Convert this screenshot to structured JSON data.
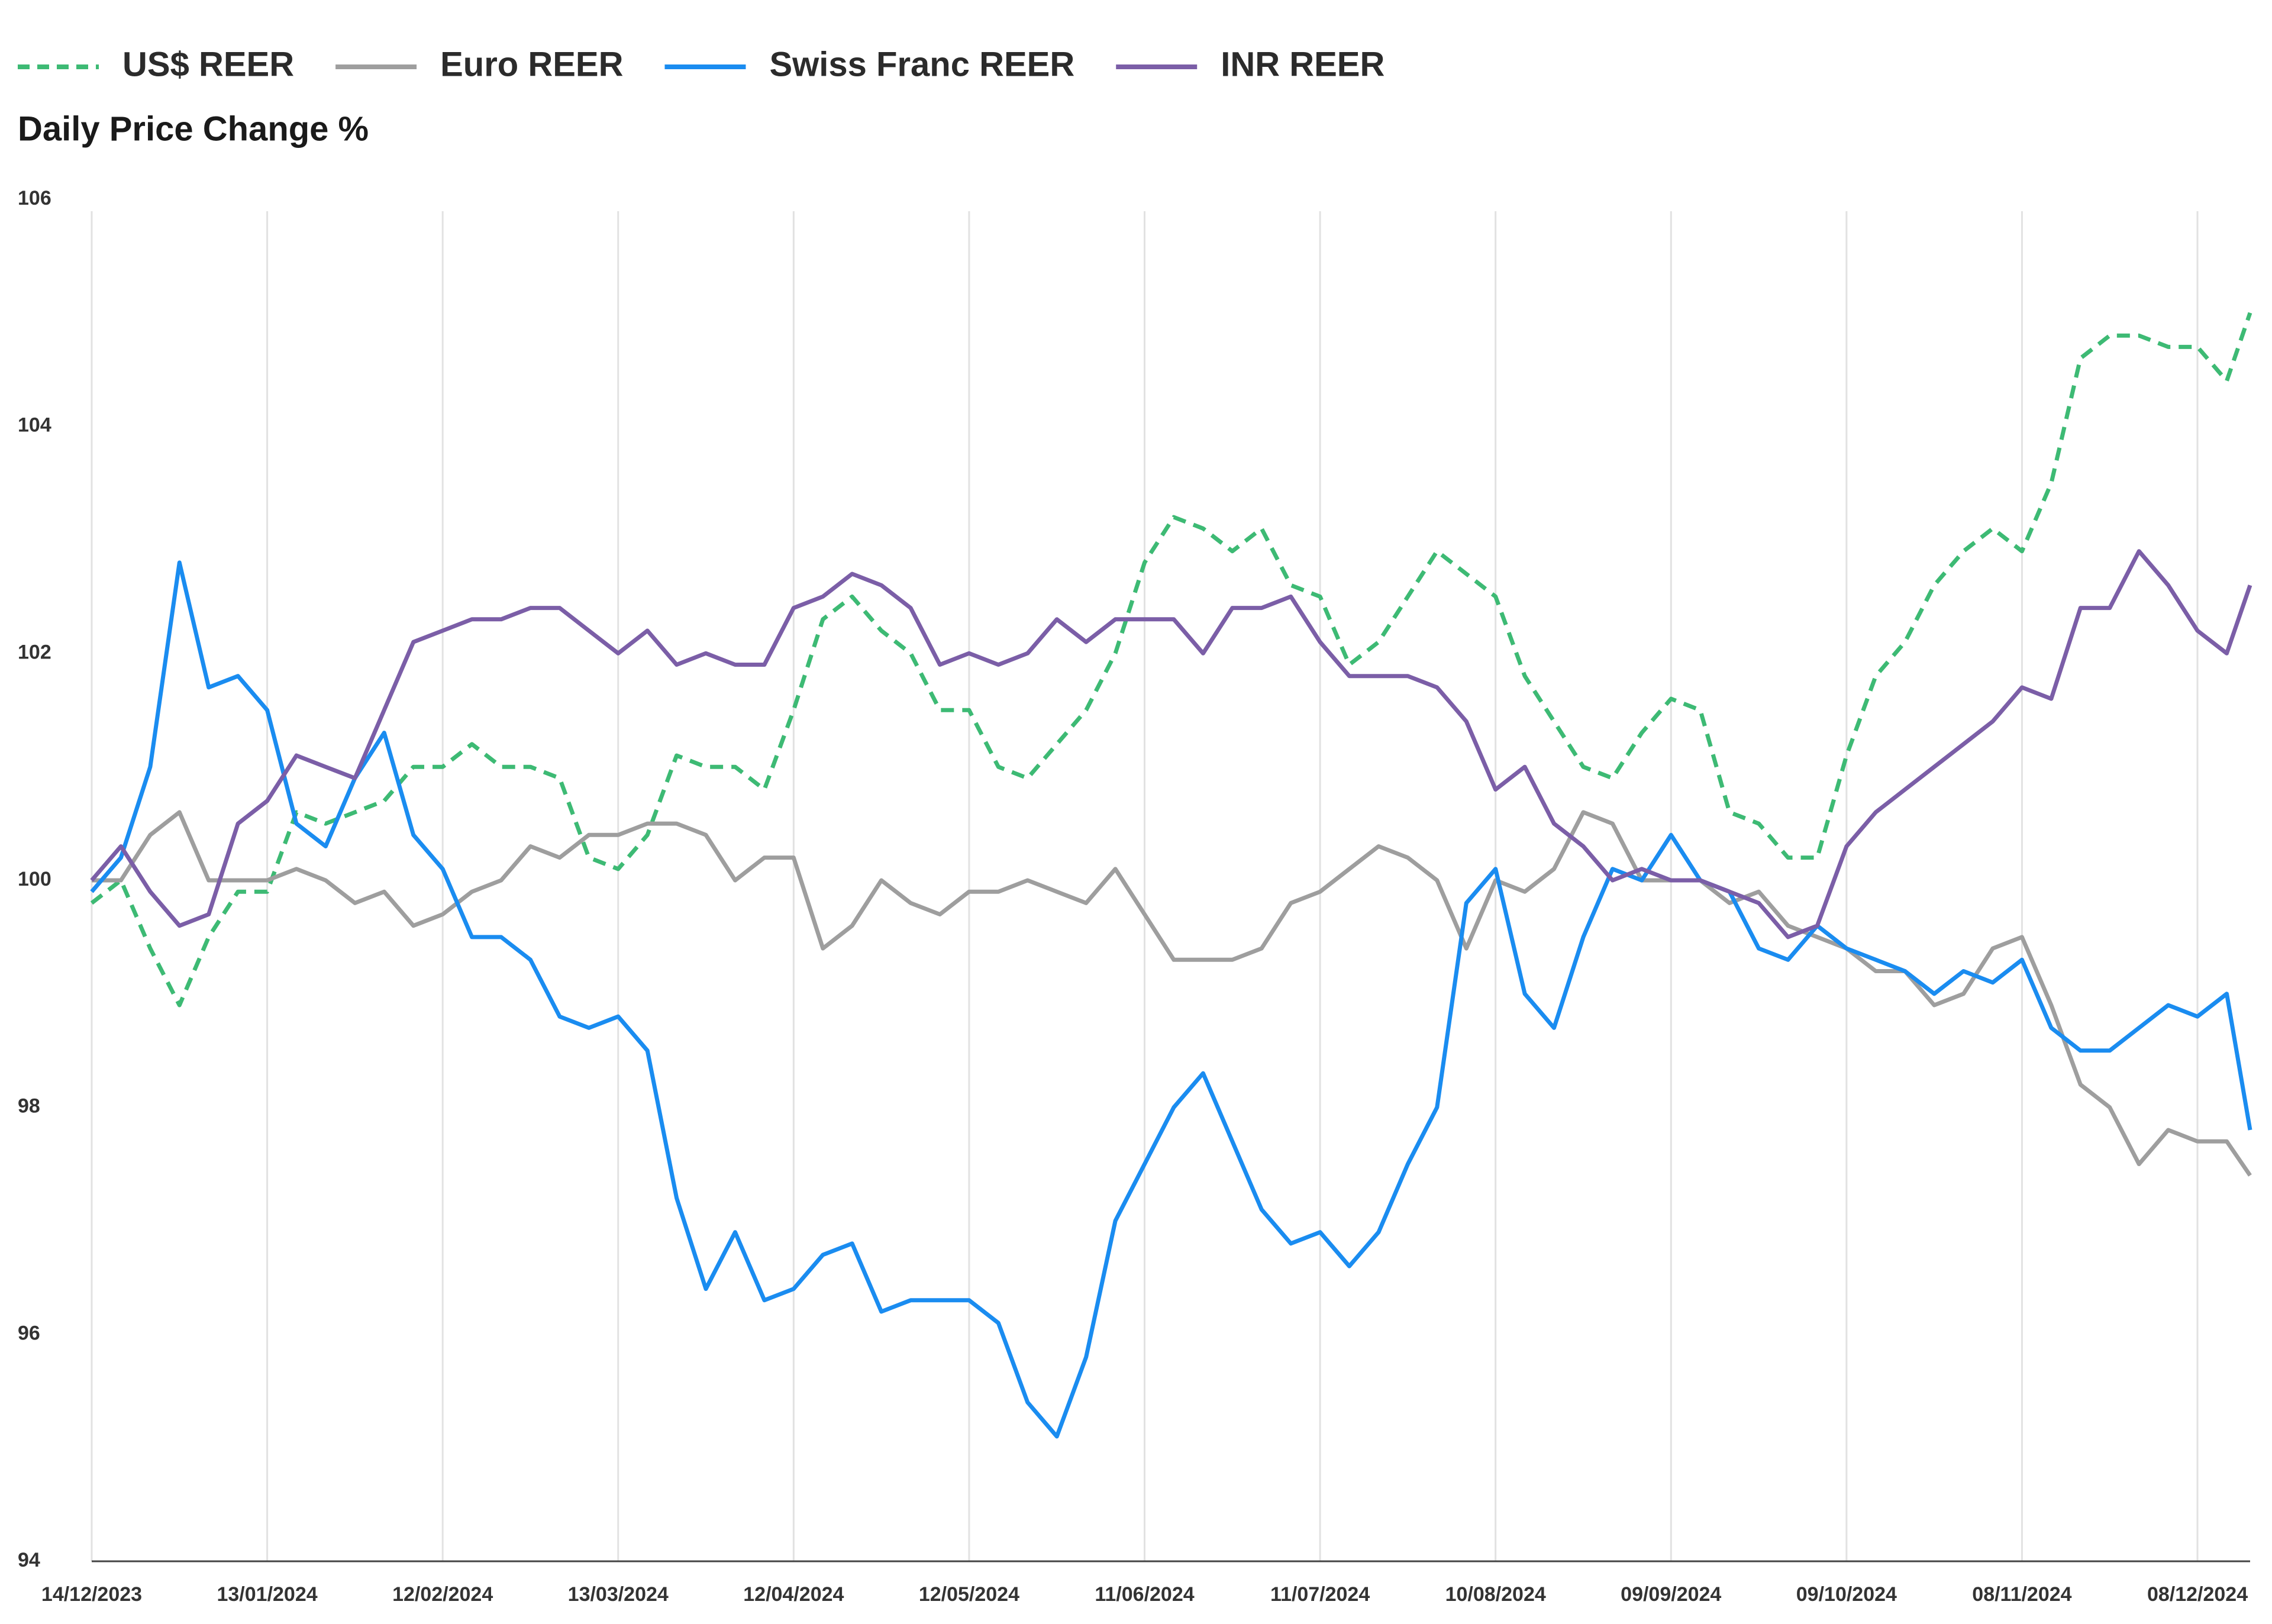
{
  "chart_data": {
    "type": "line",
    "title": "Daily Price Change %",
    "x": [
      "14/12/2023",
      "19/12/2023",
      "24/12/2023",
      "29/12/2023",
      "03/01/2024",
      "08/01/2024",
      "13/01/2024",
      "18/01/2024",
      "23/01/2024",
      "28/01/2024",
      "02/02/2024",
      "07/02/2024",
      "12/02/2024",
      "17/02/2024",
      "22/02/2024",
      "27/02/2024",
      "03/03/2024",
      "08/03/2024",
      "13/03/2024",
      "18/03/2024",
      "23/03/2024",
      "28/03/2024",
      "02/04/2024",
      "07/04/2024",
      "12/04/2024",
      "17/04/2024",
      "22/04/2024",
      "27/04/2024",
      "02/05/2024",
      "07/05/2024",
      "12/05/2024",
      "17/05/2024",
      "22/05/2024",
      "27/05/2024",
      "01/06/2024",
      "06/06/2024",
      "11/06/2024",
      "16/06/2024",
      "21/06/2024",
      "26/06/2024",
      "01/07/2024",
      "06/07/2024",
      "11/07/2024",
      "16/07/2024",
      "21/07/2024",
      "26/07/2024",
      "31/07/2024",
      "05/08/2024",
      "10/08/2024",
      "15/08/2024",
      "20/08/2024",
      "25/08/2024",
      "30/08/2024",
      "04/09/2024",
      "09/09/2024",
      "14/09/2024",
      "19/09/2024",
      "24/09/2024",
      "29/09/2024",
      "04/10/2024",
      "09/10/2024",
      "14/10/2024",
      "19/10/2024",
      "24/10/2024",
      "29/10/2024",
      "03/11/2024",
      "08/11/2024",
      "13/11/2024",
      "18/11/2024",
      "23/11/2024",
      "28/11/2024",
      "03/12/2024",
      "08/12/2024",
      "13/12/2024",
      "17/12/2024"
    ],
    "series": [
      {
        "name": "US$ REER",
        "color": "#3dba74",
        "style": "dashed",
        "values": [
          99.8,
          100.0,
          99.4,
          98.9,
          99.5,
          99.9,
          99.9,
          100.6,
          100.5,
          100.6,
          100.7,
          101.0,
          101.0,
          101.2,
          101.0,
          101.0,
          100.9,
          100.2,
          100.1,
          100.4,
          101.1,
          101.0,
          101.0,
          100.8,
          101.5,
          102.3,
          102.5,
          102.2,
          102.0,
          101.5,
          101.5,
          101.0,
          100.9,
          101.2,
          101.5,
          102.0,
          102.8,
          103.2,
          103.1,
          102.9,
          103.1,
          102.6,
          102.5,
          101.9,
          102.1,
          102.5,
          102.9,
          102.7,
          102.5,
          101.8,
          101.4,
          101.0,
          100.9,
          101.3,
          101.6,
          101.5,
          100.6,
          100.5,
          100.2,
          100.2,
          101.1,
          101.8,
          102.1,
          102.6,
          102.9,
          103.1,
          102.9,
          103.5,
          104.6,
          104.8,
          104.8,
          104.7,
          104.7,
          104.4,
          105.0
        ]
      },
      {
        "name": "Euro REER",
        "color": "#9e9e9e",
        "style": "solid",
        "values": [
          100.0,
          100.0,
          100.4,
          100.6,
          100.0,
          100.0,
          100.0,
          100.1,
          100.0,
          99.8,
          99.9,
          99.6,
          99.7,
          99.9,
          100.0,
          100.3,
          100.2,
          100.4,
          100.4,
          100.5,
          100.5,
          100.4,
          100.0,
          100.2,
          100.2,
          99.4,
          99.6,
          100.0,
          99.8,
          99.7,
          99.9,
          99.9,
          100.0,
          99.9,
          99.8,
          100.1,
          99.7,
          99.3,
          99.3,
          99.3,
          99.4,
          99.8,
          99.9,
          100.1,
          100.3,
          100.2,
          100.0,
          99.4,
          100.0,
          99.9,
          100.1,
          100.6,
          100.5,
          100.0,
          100.0,
          100.0,
          99.8,
          99.9,
          99.6,
          99.5,
          99.4,
          99.2,
          99.2,
          98.9,
          99.0,
          99.4,
          99.5,
          98.9,
          98.2,
          98.0,
          97.5,
          97.8,
          97.7,
          97.7,
          97.4
        ]
      },
      {
        "name": "Swiss Franc REER",
        "color": "#1a8cf0",
        "style": "solid",
        "values": [
          99.9,
          100.2,
          101.0,
          102.8,
          101.7,
          101.8,
          101.5,
          100.5,
          100.3,
          100.9,
          101.3,
          100.4,
          100.1,
          99.5,
          99.5,
          99.3,
          98.8,
          98.7,
          98.8,
          98.5,
          97.2,
          96.4,
          96.9,
          96.3,
          96.4,
          96.7,
          96.8,
          96.2,
          96.3,
          96.3,
          96.3,
          96.1,
          95.4,
          95.1,
          95.8,
          97.0,
          97.5,
          98.0,
          98.3,
          97.7,
          97.1,
          96.8,
          96.9,
          96.6,
          96.9,
          97.5,
          98.0,
          99.8,
          100.1,
          99.0,
          98.7,
          99.5,
          100.1,
          100.0,
          100.4,
          100.0,
          99.9,
          99.4,
          99.3,
          99.6,
          99.4,
          99.3,
          99.2,
          99.0,
          99.2,
          99.1,
          99.3,
          98.7,
          98.5,
          98.5,
          98.7,
          98.9,
          98.8,
          99.0,
          97.8
        ]
      },
      {
        "name": "INR REER",
        "color": "#7b5ea7",
        "style": "solid",
        "values": [
          100.0,
          100.3,
          99.9,
          99.6,
          99.7,
          100.5,
          100.7,
          101.1,
          101.0,
          100.9,
          101.5,
          102.1,
          102.2,
          102.3,
          102.3,
          102.4,
          102.4,
          102.2,
          102.0,
          102.2,
          101.9,
          102.0,
          101.9,
          101.9,
          102.4,
          102.5,
          102.7,
          102.6,
          102.4,
          101.9,
          102.0,
          101.9,
          102.0,
          102.3,
          102.1,
          102.3,
          102.3,
          102.3,
          102.0,
          102.4,
          102.4,
          102.5,
          102.1,
          101.8,
          101.8,
          101.8,
          101.7,
          101.4,
          100.8,
          101.0,
          100.5,
          100.3,
          100.0,
          100.1,
          100.0,
          100.0,
          99.9,
          99.8,
          99.5,
          99.6,
          100.3,
          100.6,
          100.8,
          101.0,
          101.2,
          101.4,
          101.7,
          101.6,
          102.4,
          102.4,
          102.9,
          102.6,
          102.2,
          102.0,
          102.6
        ]
      }
    ],
    "xlim": [
      "14/12/2023",
      "17/12/2024"
    ],
    "xticks": [
      "14/12/2023",
      "13/01/2024",
      "12/02/2024",
      "13/03/2024",
      "12/04/2024",
      "12/05/2024",
      "11/06/2024",
      "11/07/2024",
      "10/08/2024",
      "09/09/2024",
      "09/10/2024",
      "08/11/2024",
      "08/12/2024"
    ],
    "ylim": [
      94,
      106
    ],
    "yticks": [
      94,
      96,
      98,
      100,
      102,
      104,
      106
    ],
    "grid": "x",
    "legend": "top-left"
  }
}
